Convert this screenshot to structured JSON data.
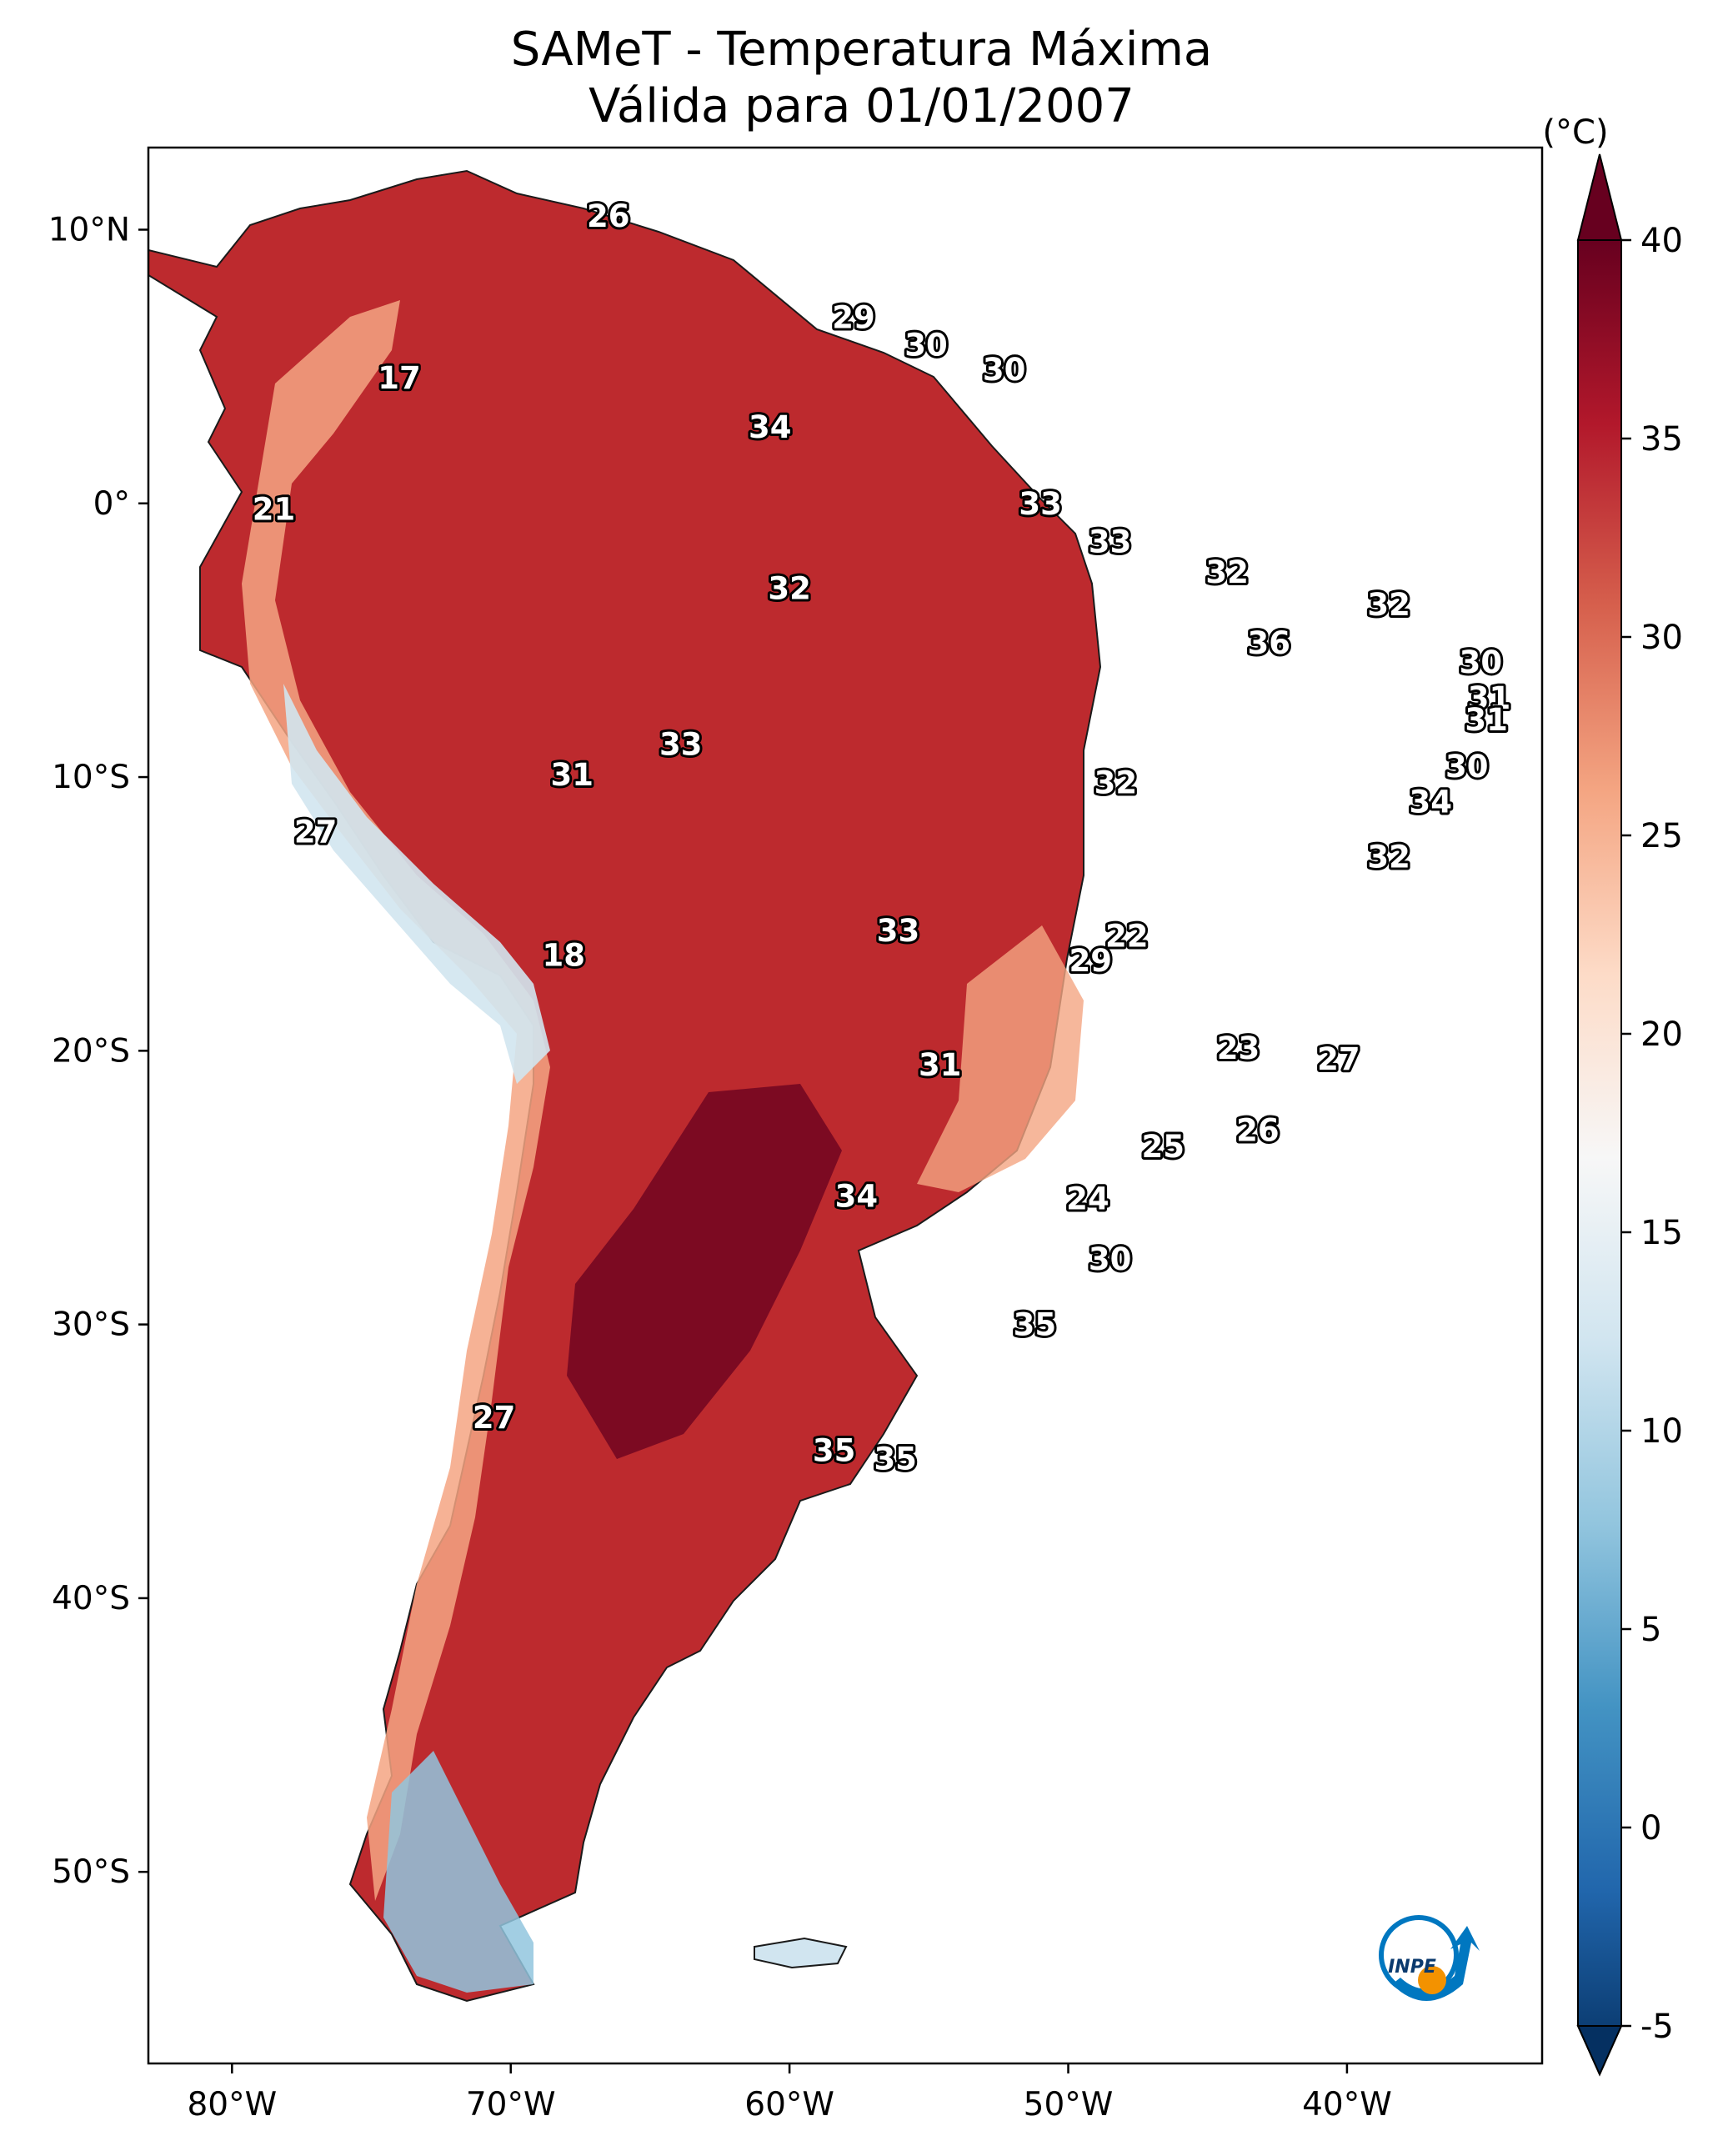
{
  "title": {
    "line1": "SAMeT - Temperatura Máxima",
    "line2": "Válida para 01/01/2007"
  },
  "map": {
    "lon_range": [
      -83,
      -33
    ],
    "lat_range": [
      -57,
      13
    ],
    "lat_ticks": [
      {
        "value": 10,
        "label": "10°N"
      },
      {
        "value": 0,
        "label": "0°"
      },
      {
        "value": -10,
        "label": "10°S"
      },
      {
        "value": -20,
        "label": "20°S"
      },
      {
        "value": -30,
        "label": "30°S"
      },
      {
        "value": -40,
        "label": "40°S"
      },
      {
        "value": -50,
        "label": "50°S"
      }
    ],
    "lon_ticks": [
      {
        "value": -80,
        "label": "80°W"
      },
      {
        "value": -70,
        "label": "70°W"
      },
      {
        "value": -60,
        "label": "60°W"
      },
      {
        "value": -50,
        "label": "50°W"
      },
      {
        "value": -40,
        "label": "40°W"
      }
    ],
    "city_labels": [
      {
        "lon": -66.5,
        "lat": 10.5,
        "text": "26"
      },
      {
        "lon": -74.0,
        "lat": 4.6,
        "text": "17"
      },
      {
        "lon": -78.5,
        "lat": -0.2,
        "text": "21"
      },
      {
        "lon": -57.7,
        "lat": 6.8,
        "text": "29"
      },
      {
        "lon": -55.1,
        "lat": 5.8,
        "text": "30"
      },
      {
        "lon": -52.3,
        "lat": 4.9,
        "text": "30"
      },
      {
        "lon": -60.7,
        "lat": 2.8,
        "text": "34"
      },
      {
        "lon": -51.0,
        "lat": 0.0,
        "text": "33"
      },
      {
        "lon": -48.5,
        "lat": -1.4,
        "text": "33"
      },
      {
        "lon": -60.0,
        "lat": -3.1,
        "text": "32"
      },
      {
        "lon": -44.3,
        "lat": -2.5,
        "text": "32"
      },
      {
        "lon": -42.8,
        "lat": -5.1,
        "text": "36"
      },
      {
        "lon": -38.5,
        "lat": -3.7,
        "text": "32"
      },
      {
        "lon": -35.2,
        "lat": -5.8,
        "text": "30"
      },
      {
        "lon": -34.9,
        "lat": -7.1,
        "text": "31"
      },
      {
        "lon": -35.0,
        "lat": -7.9,
        "text": "31"
      },
      {
        "lon": -63.9,
        "lat": -8.8,
        "text": "33"
      },
      {
        "lon": -67.8,
        "lat": -9.9,
        "text": "31"
      },
      {
        "lon": -48.3,
        "lat": -10.2,
        "text": "32"
      },
      {
        "lon": -35.7,
        "lat": -9.6,
        "text": "30"
      },
      {
        "lon": -37.0,
        "lat": -10.9,
        "text": "34"
      },
      {
        "lon": -38.5,
        "lat": -12.9,
        "text": "32"
      },
      {
        "lon": -77.0,
        "lat": -12.0,
        "text": "27"
      },
      {
        "lon": -68.1,
        "lat": -16.5,
        "text": "18"
      },
      {
        "lon": -56.1,
        "lat": -15.6,
        "text": "33"
      },
      {
        "lon": -47.9,
        "lat": -15.8,
        "text": "22"
      },
      {
        "lon": -49.2,
        "lat": -16.7,
        "text": "29"
      },
      {
        "lon": -43.9,
        "lat": -19.9,
        "text": "23"
      },
      {
        "lon": -40.3,
        "lat": -20.3,
        "text": "27"
      },
      {
        "lon": -54.6,
        "lat": -20.5,
        "text": "31"
      },
      {
        "lon": -43.2,
        "lat": -22.9,
        "text": "26"
      },
      {
        "lon": -46.6,
        "lat": -23.5,
        "text": "25"
      },
      {
        "lon": -57.6,
        "lat": -25.3,
        "text": "34"
      },
      {
        "lon": -49.3,
        "lat": -25.4,
        "text": "24"
      },
      {
        "lon": -48.5,
        "lat": -27.6,
        "text": "30"
      },
      {
        "lon": -51.2,
        "lat": -30.0,
        "text": "35"
      },
      {
        "lon": -70.6,
        "lat": -33.4,
        "text": "27"
      },
      {
        "lon": -58.4,
        "lat": -34.6,
        "text": "35"
      },
      {
        "lon": -56.2,
        "lat": -34.9,
        "text": "35"
      }
    ]
  },
  "colorbar": {
    "unit": "(°C)",
    "min": -5,
    "max": 40,
    "ticks": [
      -5,
      0,
      5,
      10,
      15,
      20,
      25,
      30,
      35,
      40
    ],
    "tick_labels": [
      "-5",
      "0",
      "5",
      "10",
      "15",
      "20",
      "25",
      "30",
      "35",
      "40"
    ],
    "colormap": [
      "#053061",
      "#2166ac",
      "#4393c3",
      "#92c5de",
      "#d1e5f0",
      "#f7f7f7",
      "#fddbc7",
      "#f4a582",
      "#d6604d",
      "#b2182b",
      "#67001f"
    ],
    "extend": "both"
  },
  "logo": {
    "text": "INPE",
    "colors": [
      "#0077c0",
      "#f39200"
    ]
  }
}
